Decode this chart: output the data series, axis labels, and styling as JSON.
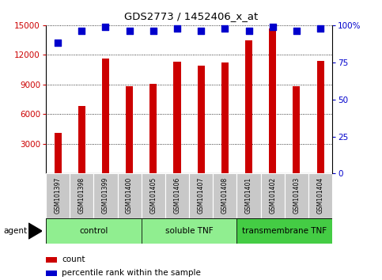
{
  "title": "GDS2773 / 1452406_x_at",
  "samples": [
    "GSM101397",
    "GSM101398",
    "GSM101399",
    "GSM101400",
    "GSM101405",
    "GSM101406",
    "GSM101407",
    "GSM101408",
    "GSM101401",
    "GSM101402",
    "GSM101403",
    "GSM101404"
  ],
  "counts": [
    4100,
    6800,
    11600,
    8800,
    9100,
    11300,
    10900,
    11200,
    13500,
    14700,
    8800,
    11400
  ],
  "percentile_ranks": [
    88,
    96,
    99,
    96,
    96,
    98,
    96,
    98,
    96,
    99,
    96,
    98
  ],
  "ylim_left": [
    0,
    15000
  ],
  "ylim_right": [
    0,
    100
  ],
  "yticks_left": [
    3000,
    6000,
    9000,
    12000,
    15000
  ],
  "yticks_right": [
    0,
    25,
    50,
    75,
    100
  ],
  "ytick_labels_right": [
    "0",
    "25",
    "50",
    "75",
    "100%"
  ],
  "bar_color": "#cc0000",
  "dot_color": "#0000cc",
  "groups": [
    {
      "label": "control",
      "start": 0,
      "end": 4,
      "color": "#90ee90"
    },
    {
      "label": "soluble TNF",
      "start": 4,
      "end": 8,
      "color": "#90ee90"
    },
    {
      "label": "transmembrane TNF",
      "start": 8,
      "end": 12,
      "color": "#44cc44"
    }
  ],
  "agent_label": "agent",
  "legend_items": [
    {
      "label": "count",
      "color": "#cc0000"
    },
    {
      "label": "percentile rank within the sample",
      "color": "#0000cc"
    }
  ],
  "dot_size": 28,
  "bar_width": 0.3,
  "sample_box_color": "#c8c8c8",
  "group_border_color": "#000000",
  "fig_bg": "#ffffff"
}
